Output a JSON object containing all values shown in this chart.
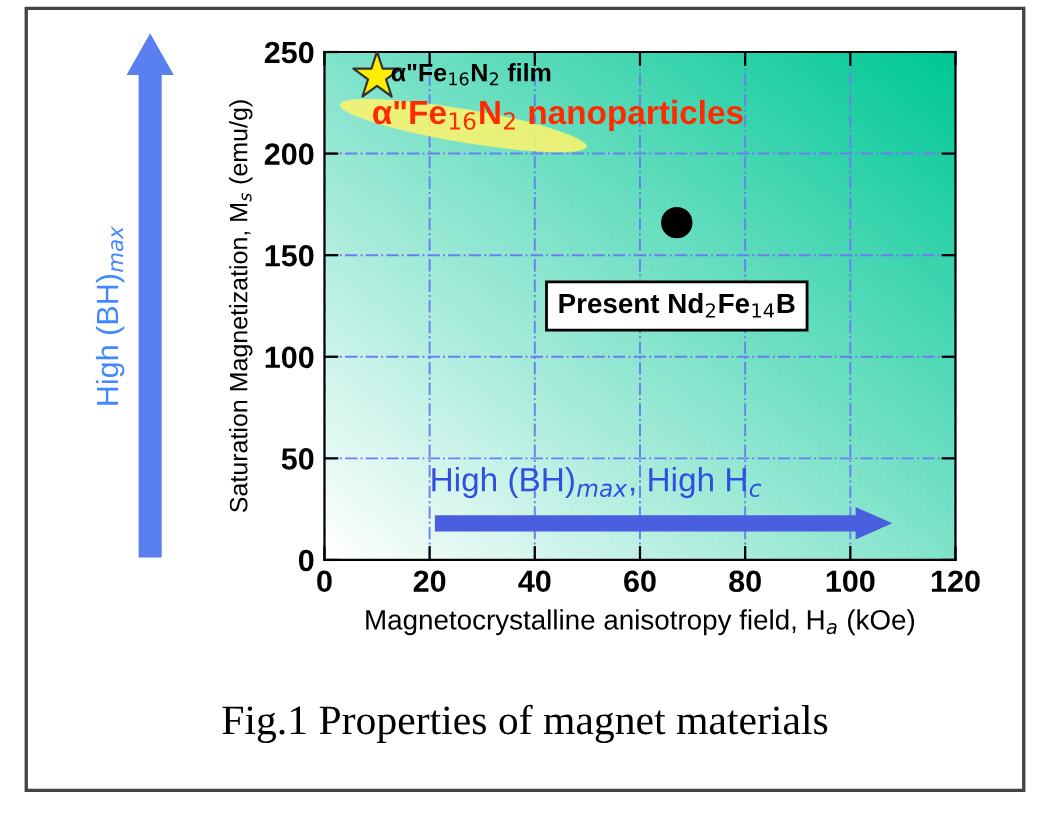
{
  "chart_data": {
    "type": "scatter",
    "xlabel": "Magnetocrystalline anisotropy field, H$_{a}$ (kOe)",
    "ylabel": "Saturation Magnetization, M$_{s}$ (emu/g)",
    "series": [
      {
        "color": "#ffee00",
        "marker": "star",
        "x": [
          10
        ],
        "values": [
          238
        ]
      },
      {
        "name": "Present Nd$_{2}$Fe$_{14}$B",
        "color": "#000000",
        "marker": "circle",
        "x": [
          67
        ],
        "values": [
          166
        ]
      }
    ],
    "xlim": [
      0,
      120
    ],
    "xticks": [
      0,
      20,
      40,
      60,
      80,
      100,
      120
    ],
    "ylim": [
      0,
      250
    ],
    "yticks": [
      0,
      50,
      100,
      150,
      200,
      250
    ],
    "grid": true,
    "annotations": [
      "α\"Fe$_{16}$N$_{2}$ film",
      "α\"Fe$_{16}$N$_{2}$ nanoparticles",
      "High (BH)$_{max}$",
      "High (BH)$_{max}$, High H$_{c}$",
      "Fig.1 Properties of magnet materials"
    ]
  }
}
